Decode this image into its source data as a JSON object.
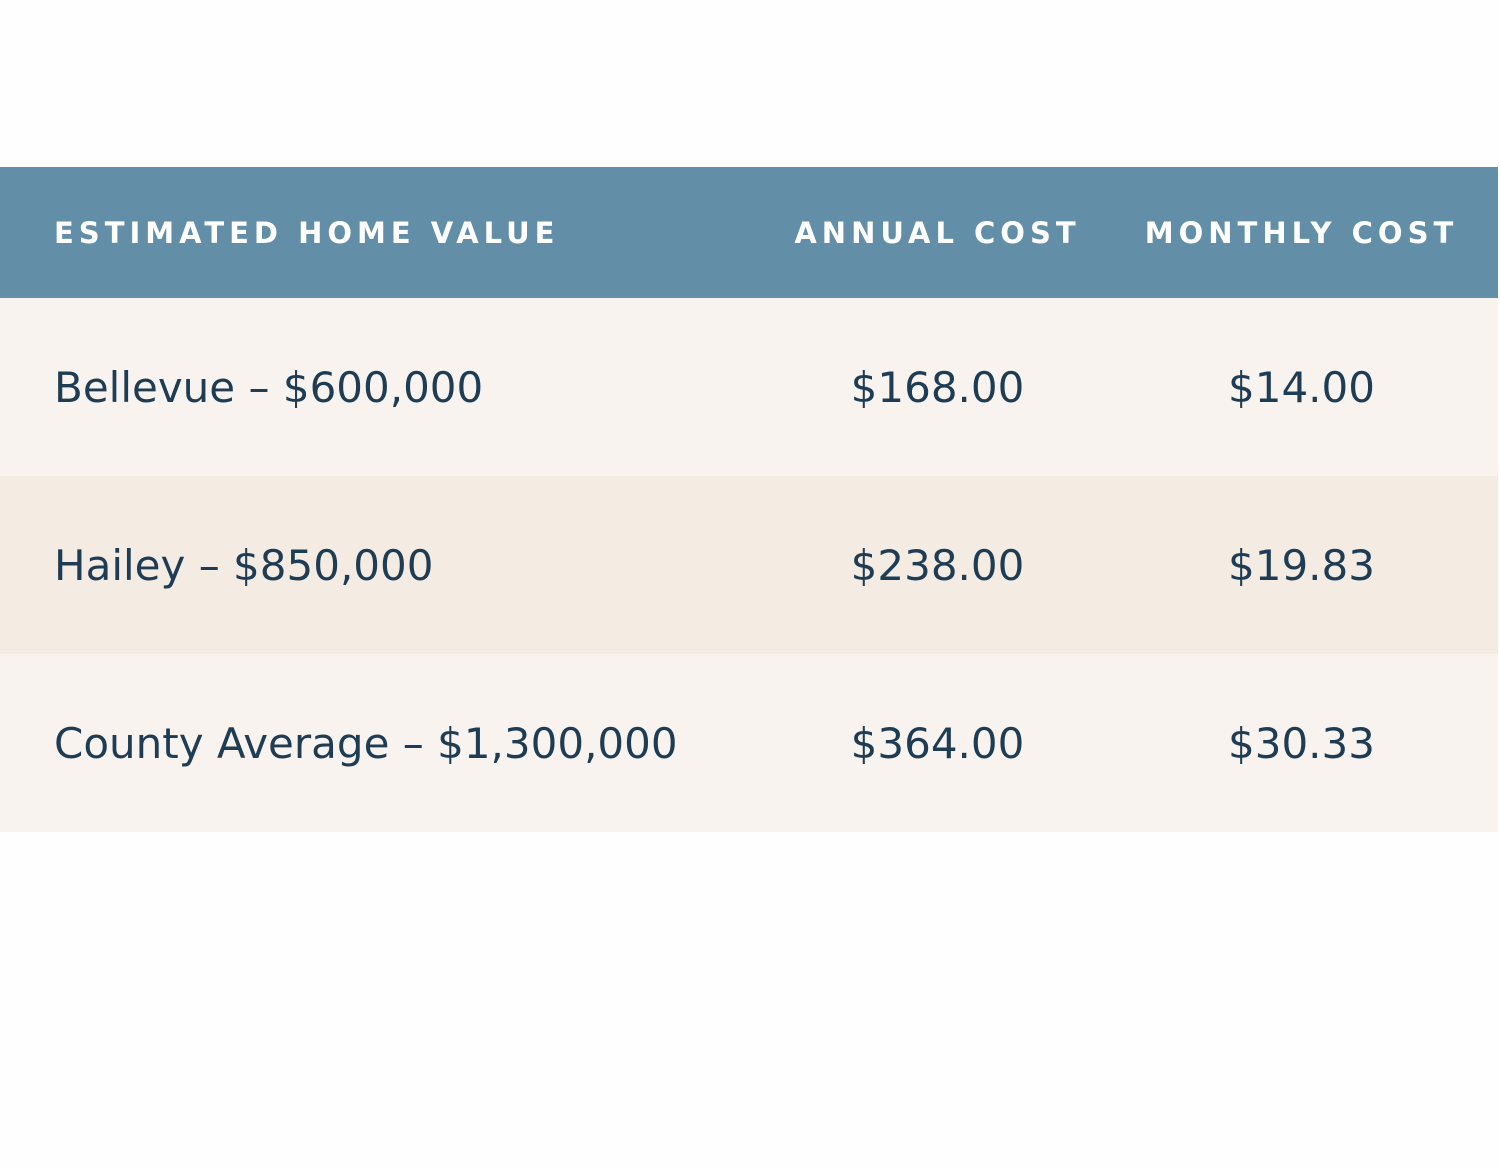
{
  "table": {
    "header": [
      "ESTIMATED HOME VALUE",
      "ANNUAL COST",
      "MONTHLY COST"
    ],
    "rows": [
      [
        "Bellevue – $600,000",
        "$168.00",
        "$14.00"
      ],
      [
        "Hailey – $850,000",
        "$238.00",
        "$19.83"
      ],
      [
        "County Average – $1,300,000",
        "$364.00",
        "$30.33"
      ]
    ]
  }
}
